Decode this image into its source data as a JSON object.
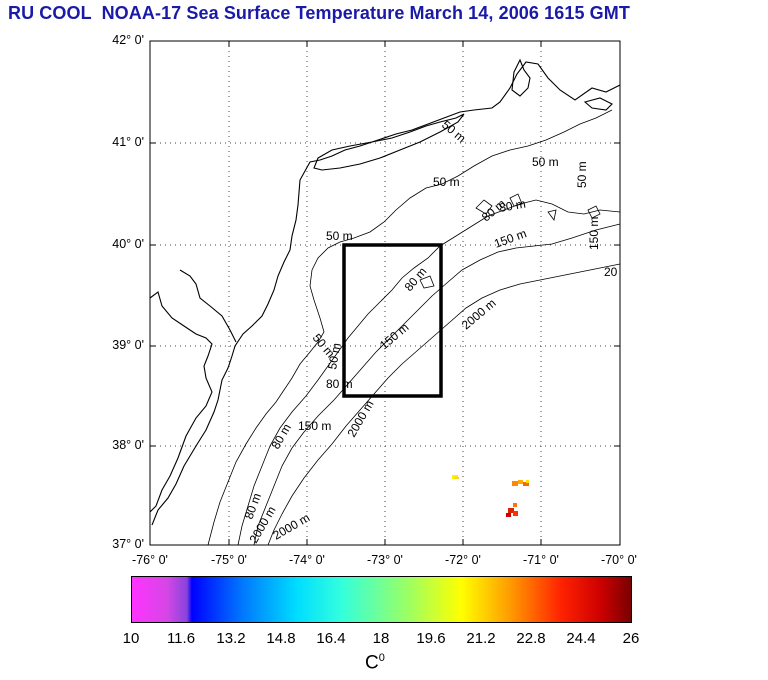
{
  "title": "RU COOL  NOAA-17 Sea Surface Temperature March 14, 2006 1615 GMT",
  "lat_labels": [
    "42° 0'",
    "41° 0'",
    "40° 0'",
    "39° 0'",
    "38° 0'",
    "37° 0'"
  ],
  "lon_labels": [
    "-76° 0'",
    "-75° 0'",
    "-74° 0'",
    "-73° 0'",
    "-72° 0'",
    "-71° 0'",
    "-70° 0'"
  ],
  "contour_labels": [
    "50 m",
    "50 m",
    "50 m",
    "50 m",
    "50 m",
    "50 m",
    "80 m",
    "80 m",
    "80 m",
    "80 m",
    "80 m",
    "150 m",
    "150 m",
    "150 m",
    "150 m",
    "2000 m",
    "2000 m",
    "2000 m",
    "2000 m",
    "20",
    "50 m",
    "80 m"
  ],
  "colorbar": {
    "ticks": [
      "10",
      "11.6",
      "13.2",
      "14.8",
      "16.4",
      "18",
      "19.6",
      "21.2",
      "22.8",
      "24.4",
      "26"
    ],
    "unit": "C",
    "unit_sup": "0"
  },
  "colors": {
    "title": "#1a1aa8",
    "box": "#000000"
  }
}
